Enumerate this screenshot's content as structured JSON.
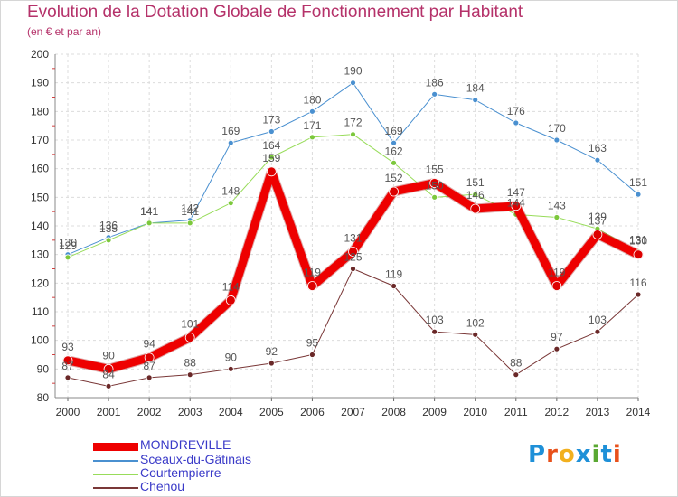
{
  "header": {
    "title": "Evolution de la Dotation Globale de Fonctionnement par Habitant",
    "subtitle": "(en € et par an)"
  },
  "logo": {
    "text": "Proxiti",
    "colors": [
      "#1e90d8",
      "#e8501a",
      "#f2b01e",
      "#1e90d8",
      "#5aa832",
      "#1e90d8",
      "#e8501a"
    ]
  },
  "chart_data": {
    "type": "line",
    "title": "Evolution de la Dotation Globale de Fonctionnement par Habitant",
    "subtitle": "(en € et par an)",
    "xlabel": "",
    "ylabel": "",
    "categories": [
      "2000",
      "2001",
      "2002",
      "2003",
      "2004",
      "2005",
      "2006",
      "2007",
      "2008",
      "2009",
      "2010",
      "2011",
      "2012",
      "2013",
      "2014"
    ],
    "ylim": [
      80,
      200
    ],
    "yticks": [
      80,
      90,
      100,
      110,
      120,
      130,
      140,
      150,
      160,
      170,
      180,
      190,
      200
    ],
    "grid": true,
    "legend_position": "bottom-left",
    "series": [
      {
        "name": "Sceaux-du-Gâtinais",
        "color": "#4a90d0",
        "marker": "#4a90d0",
        "width": 1,
        "values": [
          130,
          136,
          141,
          142,
          169,
          173,
          180,
          190,
          169,
          186,
          184,
          176,
          170,
          163,
          151
        ],
        "labels": [
          "130",
          "136",
          "141",
          "142",
          "169",
          "173",
          "180",
          "190",
          "169",
          "186",
          "184",
          "176",
          "170",
          "163",
          "151"
        ]
      },
      {
        "name": "Courtempierre",
        "color": "#98dc5a",
        "marker": "#7cc83c",
        "width": 1,
        "values": [
          129,
          135,
          141,
          141,
          148,
          164,
          171,
          172,
          162,
          150,
          151,
          144,
          143,
          139,
          131
        ],
        "labels": [
          "129",
          "135",
          "141",
          "141",
          "148",
          "164",
          "171",
          "172",
          "162",
          "150",
          "151",
          "144",
          "143",
          "139",
          "131"
        ]
      },
      {
        "name": "Chenou",
        "color": "#7a3838",
        "marker": "#6a2828",
        "width": 1,
        "values": [
          87,
          84,
          87,
          88,
          90,
          92,
          95,
          125,
          119,
          103,
          102,
          88,
          97,
          103,
          116
        ],
        "labels": [
          "87",
          "84",
          "87",
          "88",
          "90",
          "92",
          "95",
          "125",
          "119",
          "103",
          "102",
          "88",
          "97",
          "103",
          "116"
        ]
      },
      {
        "name": "MONDREVILLE",
        "color": "#ee0000",
        "marker": "#dd0000",
        "width": 9,
        "values": [
          93,
          90,
          94,
          101,
          114,
          159,
          119,
          131,
          152,
          155,
          146,
          147,
          119,
          137,
          130
        ],
        "labels": [
          "93",
          "90",
          "94",
          "101",
          "114",
          "159",
          "119",
          "131",
          "152",
          "155",
          "146",
          "147",
          "119",
          "137",
          "130"
        ]
      }
    ]
  },
  "legend": [
    {
      "label": "MONDREVILLE",
      "color": "#ee0000",
      "thick": true
    },
    {
      "label": "Sceaux-du-Gâtinais",
      "color": "#4a90d0",
      "thick": false
    },
    {
      "label": "Courtempierre",
      "color": "#98dc5a",
      "thick": false
    },
    {
      "label": "Chenou",
      "color": "#7a3838",
      "thick": false
    }
  ]
}
